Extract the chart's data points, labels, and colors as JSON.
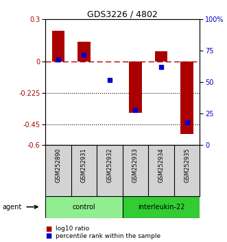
{
  "title": "GDS3226 / 4802",
  "samples": [
    "GSM252890",
    "GSM252931",
    "GSM252932",
    "GSM252933",
    "GSM252934",
    "GSM252935"
  ],
  "log10_ratio": [
    0.22,
    0.14,
    0.0,
    -0.37,
    0.07,
    -0.52
  ],
  "percentile_rank": [
    68,
    72,
    52,
    28,
    62,
    18
  ],
  "groups": [
    {
      "label": "control",
      "samples": [
        0,
        1,
        2
      ],
      "color": "#90EE90"
    },
    {
      "label": "interleukin-22",
      "samples": [
        3,
        4,
        5
      ],
      "color": "#32CD32"
    }
  ],
  "ylim_left": [
    -0.6,
    0.3
  ],
  "ylim_right": [
    0,
    100
  ],
  "yticks_left": [
    0.3,
    0.0,
    -0.225,
    -0.45,
    -0.6
  ],
  "yticks_right": [
    100,
    75,
    50,
    25,
    0
  ],
  "hline_dashed": 0.0,
  "hlines_dotted": [
    -0.225,
    -0.45
  ],
  "bar_color": "#AA0000",
  "dot_color": "#0000CC",
  "bar_width": 0.5,
  "background_color": "#ffffff",
  "plot_bg_color": "#ffffff"
}
